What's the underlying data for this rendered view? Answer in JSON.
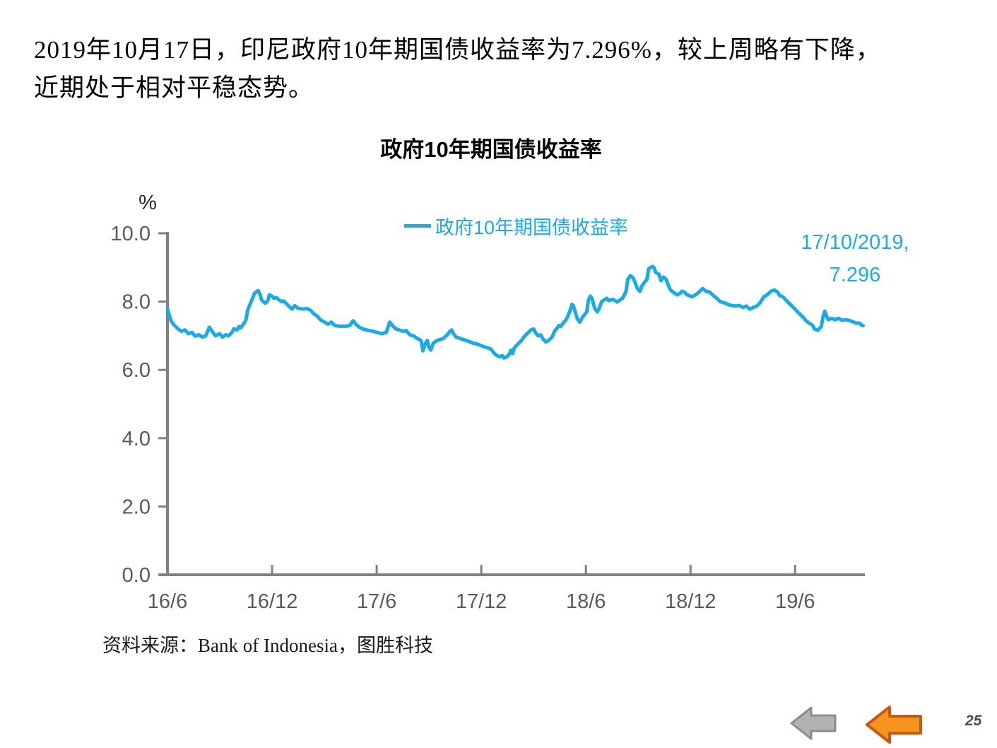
{
  "header": {
    "line1": "2019年10月17日，印尼政府10年期国债收益率为7.296%，较上周略有下降，",
    "line2": "近期处于相对平稳态势。"
  },
  "chart": {
    "title": "政府10年期国债收益率",
    "legend_label": "政府10年期国债收益率",
    "annotation_line1": "17/10/2019,",
    "annotation_line2": "7.296",
    "source": "资料来源：Bank of Indonesia，图胜科技",
    "colors": {
      "line": "#1BAAE4",
      "axis": "#808080",
      "tick_label": "#595959",
      "unit_label": "#262626"
    }
  },
  "chart_data": {
    "type": "line",
    "title": "政府10年期国债收益率",
    "series_name": "政府10年期国债收益率",
    "ylabel": "%",
    "ylim": [
      0,
      10
    ],
    "y_ticks": [
      0,
      2,
      4,
      6,
      8,
      10
    ],
    "xlim": [
      0,
      40
    ],
    "x_unit": "months since Jun 2016",
    "x_tick_positions": [
      0,
      6,
      12,
      18,
      24,
      30,
      36
    ],
    "x_tick_labels": [
      "16/6",
      "16/12",
      "17/6",
      "17/12",
      "18/6",
      "18/12",
      "19/6"
    ],
    "grid": false,
    "legend_position": "top-center",
    "annotation": {
      "text": "17/10/2019, 7.296",
      "x": 39.9,
      "y": 7.296
    },
    "points": [
      [
        0,
        7.79
      ],
      [
        0.2,
        7.44
      ],
      [
        0.4,
        7.3
      ],
      [
        0.6,
        7.2
      ],
      [
        0.8,
        7.13
      ],
      [
        1.0,
        7.17
      ],
      [
        1.2,
        7.06
      ],
      [
        1.4,
        7.1
      ],
      [
        1.6,
        6.99
      ],
      [
        1.8,
        7.03
      ],
      [
        2.0,
        6.96
      ],
      [
        2.2,
        7.0
      ],
      [
        2.4,
        7.25
      ],
      [
        2.6,
        7.1
      ],
      [
        2.75,
        7.0
      ],
      [
        3.0,
        7.06
      ],
      [
        3.15,
        6.96
      ],
      [
        3.35,
        7.03
      ],
      [
        3.5,
        7.0
      ],
      [
        3.7,
        7.1
      ],
      [
        3.8,
        7.2
      ],
      [
        4.0,
        7.17
      ],
      [
        4.1,
        7.27
      ],
      [
        4.2,
        7.23
      ],
      [
        4.4,
        7.37
      ],
      [
        4.5,
        7.46
      ],
      [
        4.6,
        7.75
      ],
      [
        4.8,
        8.0
      ],
      [
        4.9,
        8.12
      ],
      [
        5.0,
        8.25
      ],
      [
        5.2,
        8.32
      ],
      [
        5.3,
        8.22
      ],
      [
        5.4,
        8.05
      ],
      [
        5.6,
        7.95
      ],
      [
        5.75,
        8.02
      ],
      [
        5.85,
        8.2
      ],
      [
        6.0,
        8.16
      ],
      [
        6.1,
        8.1
      ],
      [
        6.25,
        8.12
      ],
      [
        6.4,
        8.05
      ],
      [
        6.55,
        8.0
      ],
      [
        6.65,
        8.02
      ],
      [
        6.8,
        7.95
      ],
      [
        7.0,
        7.85
      ],
      [
        7.15,
        7.78
      ],
      [
        7.3,
        7.88
      ],
      [
        7.5,
        7.8
      ],
      [
        7.8,
        7.78
      ],
      [
        8.0,
        7.8
      ],
      [
        8.2,
        7.75
      ],
      [
        8.4,
        7.64
      ],
      [
        8.6,
        7.57
      ],
      [
        8.8,
        7.46
      ],
      [
        9.0,
        7.4
      ],
      [
        9.2,
        7.34
      ],
      [
        9.4,
        7.4
      ],
      [
        9.6,
        7.3
      ],
      [
        9.85,
        7.28
      ],
      [
        10.05,
        7.28
      ],
      [
        10.25,
        7.28
      ],
      [
        10.45,
        7.3
      ],
      [
        10.65,
        7.44
      ],
      [
        10.8,
        7.34
      ],
      [
        11.0,
        7.25
      ],
      [
        11.2,
        7.2
      ],
      [
        11.4,
        7.17
      ],
      [
        11.6,
        7.15
      ],
      [
        11.8,
        7.13
      ],
      [
        12.0,
        7.1
      ],
      [
        12.3,
        7.06
      ],
      [
        12.55,
        7.1
      ],
      [
        12.75,
        7.4
      ],
      [
        12.9,
        7.3
      ],
      [
        13.1,
        7.2
      ],
      [
        13.3,
        7.17
      ],
      [
        13.5,
        7.13
      ],
      [
        13.7,
        7.15
      ],
      [
        13.9,
        7.03
      ],
      [
        14.1,
        7.0
      ],
      [
        14.3,
        6.93
      ],
      [
        14.55,
        6.86
      ],
      [
        14.65,
        6.56
      ],
      [
        14.8,
        6.78
      ],
      [
        14.9,
        6.86
      ],
      [
        15.0,
        6.66
      ],
      [
        15.1,
        6.58
      ],
      [
        15.25,
        6.78
      ],
      [
        15.45,
        6.86
      ],
      [
        15.65,
        6.89
      ],
      [
        15.85,
        6.93
      ],
      [
        16.05,
        7.03
      ],
      [
        16.2,
        7.13
      ],
      [
        16.3,
        7.17
      ],
      [
        16.4,
        7.06
      ],
      [
        16.55,
        6.96
      ],
      [
        16.75,
        6.93
      ],
      [
        16.95,
        6.89
      ],
      [
        17.15,
        6.86
      ],
      [
        17.35,
        6.82
      ],
      [
        17.55,
        6.78
      ],
      [
        17.75,
        6.76
      ],
      [
        17.95,
        6.72
      ],
      [
        18.15,
        6.68
      ],
      [
        18.35,
        6.65
      ],
      [
        18.55,
        6.61
      ],
      [
        18.75,
        6.48
      ],
      [
        18.9,
        6.42
      ],
      [
        19.05,
        6.38
      ],
      [
        19.2,
        6.42
      ],
      [
        19.3,
        6.35
      ],
      [
        19.45,
        6.38
      ],
      [
        19.6,
        6.45
      ],
      [
        19.7,
        6.58
      ],
      [
        19.8,
        6.48
      ],
      [
        19.9,
        6.65
      ],
      [
        20.1,
        6.76
      ],
      [
        20.3,
        6.86
      ],
      [
        20.5,
        7.0
      ],
      [
        20.7,
        7.1
      ],
      [
        20.85,
        7.17
      ],
      [
        21.0,
        7.2
      ],
      [
        21.1,
        7.1
      ],
      [
        21.25,
        7.0
      ],
      [
        21.4,
        7.03
      ],
      [
        21.55,
        6.9
      ],
      [
        21.7,
        6.82
      ],
      [
        21.85,
        6.86
      ],
      [
        22.0,
        6.93
      ],
      [
        22.1,
        7.0
      ],
      [
        22.2,
        7.13
      ],
      [
        22.35,
        7.23
      ],
      [
        22.45,
        7.3
      ],
      [
        22.55,
        7.27
      ],
      [
        22.7,
        7.37
      ],
      [
        22.85,
        7.46
      ],
      [
        22.95,
        7.56
      ],
      [
        23.1,
        7.75
      ],
      [
        23.2,
        7.92
      ],
      [
        23.3,
        7.85
      ],
      [
        23.4,
        7.68
      ],
      [
        23.5,
        7.5
      ],
      [
        23.65,
        7.4
      ],
      [
        23.8,
        7.54
      ],
      [
        23.9,
        7.6
      ],
      [
        24.05,
        7.7
      ],
      [
        24.15,
        8.05
      ],
      [
        24.25,
        8.16
      ],
      [
        24.35,
        8.1
      ],
      [
        24.5,
        7.81
      ],
      [
        24.65,
        7.7
      ],
      [
        24.75,
        7.78
      ],
      [
        24.9,
        8.0
      ],
      [
        25.05,
        8.05
      ],
      [
        25.2,
        8.1
      ],
      [
        25.3,
        8.03
      ],
      [
        25.55,
        8.07
      ],
      [
        25.8,
        7.99
      ],
      [
        26.1,
        8.1
      ],
      [
        26.3,
        8.3
      ],
      [
        26.4,
        8.65
      ],
      [
        26.55,
        8.76
      ],
      [
        26.7,
        8.7
      ],
      [
        26.8,
        8.59
      ],
      [
        26.95,
        8.38
      ],
      [
        27.1,
        8.3
      ],
      [
        27.2,
        8.45
      ],
      [
        27.4,
        8.59
      ],
      [
        27.5,
        8.65
      ],
      [
        27.6,
        8.96
      ],
      [
        27.8,
        9.03
      ],
      [
        27.9,
        9.0
      ],
      [
        28.0,
        8.86
      ],
      [
        28.2,
        8.8
      ],
      [
        28.3,
        8.61
      ],
      [
        28.45,
        8.72
      ],
      [
        28.6,
        8.65
      ],
      [
        28.7,
        8.51
      ],
      [
        28.85,
        8.34
      ],
      [
        29.0,
        8.28
      ],
      [
        29.1,
        8.24
      ],
      [
        29.25,
        8.2
      ],
      [
        29.4,
        8.24
      ],
      [
        29.5,
        8.3
      ],
      [
        29.65,
        8.28
      ],
      [
        29.8,
        8.2
      ],
      [
        30.1,
        8.14
      ],
      [
        30.4,
        8.24
      ],
      [
        30.7,
        8.38
      ],
      [
        30.9,
        8.3
      ],
      [
        31.1,
        8.28
      ],
      [
        31.3,
        8.18
      ],
      [
        31.5,
        8.1
      ],
      [
        31.7,
        8.0
      ],
      [
        31.9,
        7.97
      ],
      [
        32.1,
        7.93
      ],
      [
        32.3,
        7.89
      ],
      [
        32.6,
        7.87
      ],
      [
        32.8,
        7.89
      ],
      [
        33.0,
        7.83
      ],
      [
        33.2,
        7.87
      ],
      [
        33.4,
        7.78
      ],
      [
        33.6,
        7.83
      ],
      [
        33.8,
        7.87
      ],
      [
        34.0,
        7.97
      ],
      [
        34.2,
        8.14
      ],
      [
        34.4,
        8.2
      ],
      [
        34.6,
        8.3
      ],
      [
        34.8,
        8.34
      ],
      [
        35.0,
        8.28
      ],
      [
        35.1,
        8.18
      ],
      [
        35.3,
        8.14
      ],
      [
        35.5,
        8.03
      ],
      [
        35.7,
        7.93
      ],
      [
        35.9,
        7.83
      ],
      [
        36.1,
        7.72
      ],
      [
        36.3,
        7.62
      ],
      [
        36.5,
        7.52
      ],
      [
        36.6,
        7.45
      ],
      [
        36.8,
        7.37
      ],
      [
        37.0,
        7.31
      ],
      [
        37.1,
        7.2
      ],
      [
        37.3,
        7.16
      ],
      [
        37.5,
        7.27
      ],
      [
        37.6,
        7.56
      ],
      [
        37.7,
        7.72
      ],
      [
        37.8,
        7.58
      ],
      [
        37.9,
        7.47
      ],
      [
        38.1,
        7.51
      ],
      [
        38.3,
        7.47
      ],
      [
        38.5,
        7.51
      ],
      [
        38.7,
        7.45
      ],
      [
        38.9,
        7.47
      ],
      [
        39.1,
        7.45
      ],
      [
        39.3,
        7.41
      ],
      [
        39.5,
        7.37
      ],
      [
        39.7,
        7.37
      ],
      [
        39.8,
        7.31
      ],
      [
        39.9,
        7.296
      ]
    ]
  },
  "footer": {
    "page_number": "25",
    "arrows": [
      {
        "name": "gray-left-arrow",
        "fill": "#B2B2B2",
        "stroke": "#8C8C8C"
      },
      {
        "name": "orange-left-arrow",
        "fill": "#F7941E",
        "stroke": "#C65A11"
      }
    ]
  }
}
